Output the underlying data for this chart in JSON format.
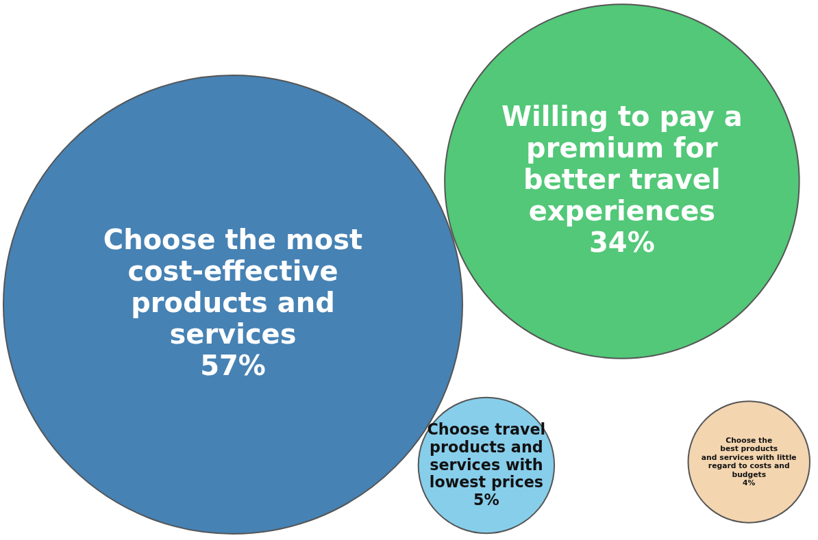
{
  "chart_data": {
    "type": "other",
    "categories": [
      "Choose the most\ncost-effective\nproducts and\nservices",
      "Willing to pay a\npremium for\nbetter travel\nexperiences",
      "Choose travel\nproducts and\nservices with\nlowest prices",
      "Choose the\nbest products\nand services with little\nregard to costs and\nbudgets"
    ],
    "values": [
      57,
      34,
      5,
      4
    ],
    "value_labels": [
      "57%",
      "34%",
      "5%",
      "4%"
    ],
    "colors": [
      "#4682b4",
      "#52c878",
      "#87ceeb",
      "#f3d5b0"
    ]
  }
}
